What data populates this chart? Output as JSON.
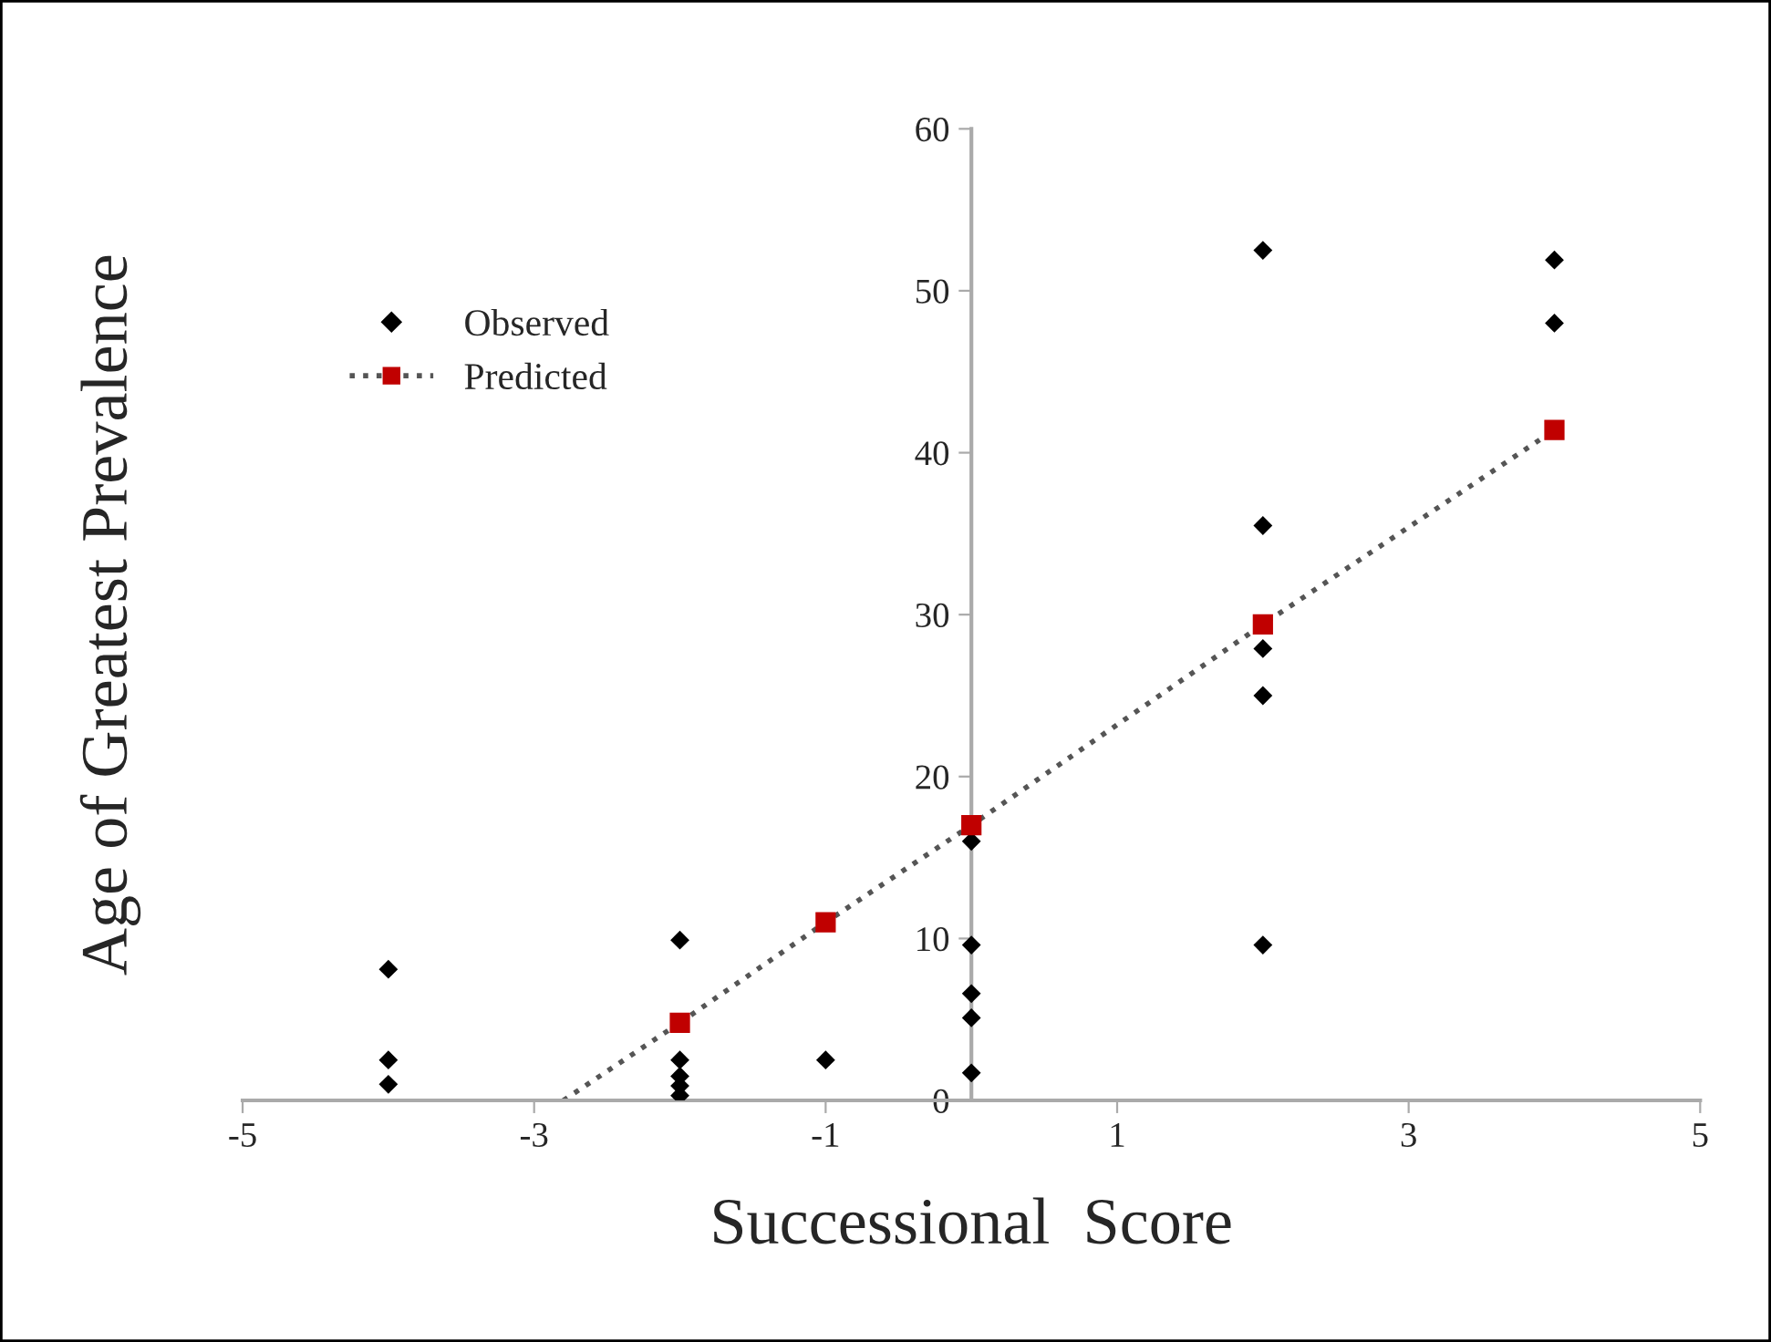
{
  "chart_data": {
    "type": "scatter",
    "xlabel": "Successional  Score",
    "ylabel": "Age of Greatest Prevalence",
    "xlim": [
      -5,
      5
    ],
    "ylim": [
      0,
      60
    ],
    "xticks": [
      -5,
      -3,
      -1,
      1,
      3,
      5
    ],
    "yticks": [
      0,
      10,
      20,
      30,
      40,
      50,
      60
    ],
    "grid": false,
    "legend": "top left",
    "series": [
      {
        "name": "Observed",
        "marker": "diamond",
        "color": "#000000",
        "x": [
          -4,
          -4,
          -4,
          -2,
          -2,
          -2,
          -2,
          -2,
          -1,
          0,
          0,
          0,
          0,
          0,
          2,
          2,
          2,
          2,
          2,
          4,
          4
        ],
        "values": [
          8.1,
          2.5,
          1.0,
          9.9,
          2.5,
          1.5,
          0.9,
          0.3,
          2.5,
          16.0,
          9.6,
          6.6,
          5.1,
          1.7,
          52.5,
          35.5,
          27.9,
          25.0,
          9.6,
          51.9,
          48.0
        ]
      },
      {
        "name": "Predicted",
        "type": "line",
        "marker": "square",
        "line_style": "dotted",
        "color": "#c00000",
        "x": [
          -2,
          -1,
          0,
          2,
          4
        ],
        "values": [
          4.8,
          11.0,
          17.0,
          29.4,
          41.4
        ]
      },
      {
        "type": "line",
        "marker": "none",
        "line_style": "dotted",
        "color": "#555555",
        "x": [
          -2.8,
          -2
        ],
        "values": [
          0,
          4.8
        ]
      }
    ]
  }
}
